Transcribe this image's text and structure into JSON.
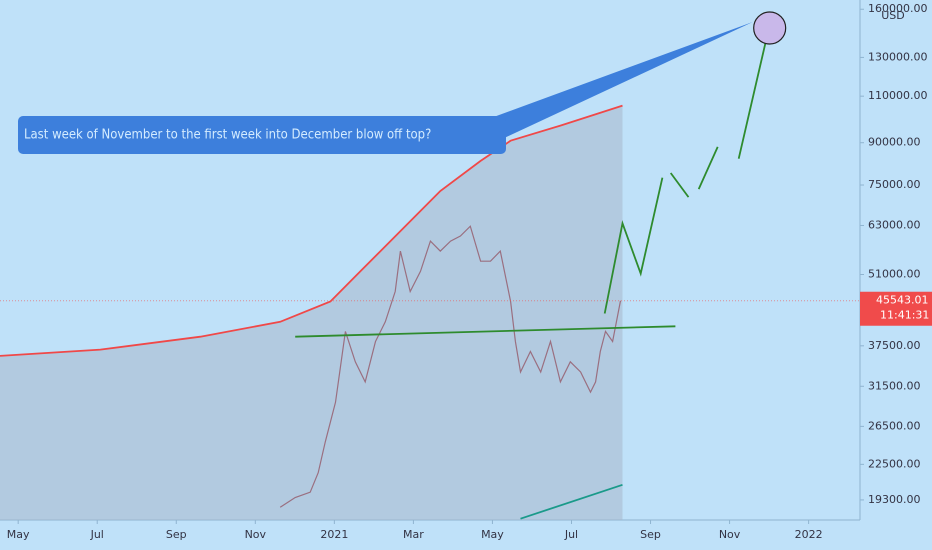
{
  "chart_data": {
    "type": "line",
    "log_scale": true,
    "grid": false,
    "background": "#bfe1f9",
    "currency": "USD",
    "annotation": "Last week of November to the first week into December blow off top?",
    "last_price": {
      "value": 45543.01,
      "label": "45543.01"
    },
    "countdown": "11:41:31",
    "xlim": [
      -0.46,
      21.3
    ],
    "xticks": [
      {
        "value": 0,
        "label": "May"
      },
      {
        "value": 2,
        "label": "Jul"
      },
      {
        "value": 4,
        "label": "Sep"
      },
      {
        "value": 6,
        "label": "Nov"
      },
      {
        "value": 8,
        "label": "2021"
      },
      {
        "value": 10,
        "label": "Mar"
      },
      {
        "value": 12,
        "label": "May"
      },
      {
        "value": 14,
        "label": "Jul"
      },
      {
        "value": 16,
        "label": "Sep"
      },
      {
        "value": 18,
        "label": "Nov"
      },
      {
        "value": 20,
        "label": "2022"
      }
    ],
    "ylim": [
      17700,
      166500
    ],
    "yticks": [
      {
        "value": 19300,
        "label": "19300.00"
      },
      {
        "value": 22500,
        "label": "22500.00"
      },
      {
        "value": 26500,
        "label": "26500.00"
      },
      {
        "value": 31500,
        "label": "31500.00"
      },
      {
        "value": 37500,
        "label": "37500.00"
      },
      {
        "value": 51000,
        "label": "51000.00"
      },
      {
        "value": 63000,
        "label": "63000.00"
      },
      {
        "value": 75000,
        "label": "75000.00"
      },
      {
        "value": 90000,
        "label": "90000.00"
      },
      {
        "value": 110000,
        "label": "110000.00"
      },
      {
        "value": 130000,
        "label": "130000.00"
      },
      {
        "value": 160000,
        "label": "160000.00"
      }
    ],
    "series": [
      {
        "color": "#f04848",
        "fill": true,
        "x": [
          -0.46,
          2.08,
          4.61,
          6.63,
          7.9,
          8.66,
          9.67,
          10.68,
          11.7,
          12.46,
          13.72,
          15.29
        ],
        "values": [
          35900,
          36900,
          39000,
          41600,
          45400,
          51700,
          61500,
          73100,
          83200,
          90800,
          96900,
          105600
        ]
      },
      {
        "color": "#1a9a8a",
        "x": [
          12.71,
          15.29
        ],
        "values": [
          17800,
          20600
        ]
      },
      {
        "color": "#9a6f80",
        "x": [
          6.63,
          7.01,
          7.39,
          7.59,
          7.77,
          8.03,
          8.28,
          8.53,
          8.78,
          9.04,
          9.29,
          9.54,
          9.67,
          9.92,
          10.18,
          10.43,
          10.68,
          10.94,
          11.19,
          11.44,
          11.7,
          11.95,
          12.2,
          12.46,
          12.58,
          12.71,
          12.96,
          13.22,
          13.47,
          13.72,
          13.97,
          14.23,
          14.48,
          14.61,
          14.73,
          14.86,
          15.04,
          15.24
        ],
        "values": [
          18700,
          19500,
          19950,
          21700,
          24800,
          29400,
          39900,
          35000,
          32100,
          38200,
          41600,
          47400,
          56400,
          47400,
          51700,
          58900,
          56400,
          58900,
          60200,
          62800,
          54000,
          54000,
          56400,
          45400,
          38200,
          33500,
          36600,
          33500,
          38200,
          32100,
          35000,
          33500,
          30700,
          32100,
          36600,
          39900,
          38200,
          45543.01
        ]
      },
      {
        "color": "#2e8b2e",
        "x": [
          7.01,
          16.63
        ],
        "values": [
          39000,
          40800
        ]
      },
      {
        "color": "#2e8b2e",
        "x": [
          14.84,
          15.29,
          15.75,
          16.3,
          null,
          16.51,
          16.96,
          null,
          17.22,
          17.7,
          null,
          18.23,
          19.04
        ],
        "values": [
          43100,
          63600,
          51200,
          77400,
          null,
          79000,
          71200,
          null,
          73700,
          88400,
          null,
          84000,
          152600
        ]
      }
    ]
  }
}
